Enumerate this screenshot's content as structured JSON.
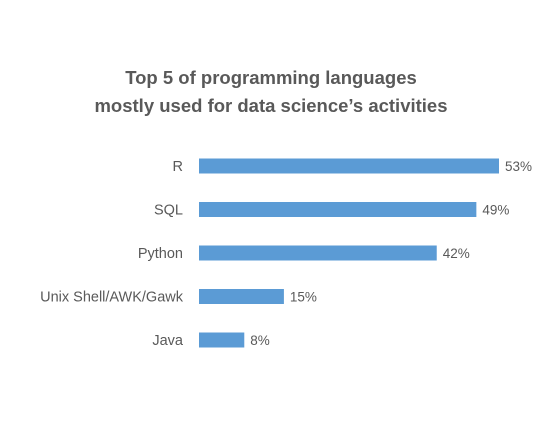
{
  "chart_data": {
    "type": "bar",
    "orientation": "horizontal",
    "title": [
      "Top 5 of programming languages",
      "mostly used for data science’s activities"
    ],
    "categories": [
      "R",
      "SQL",
      "Python",
      "Unix Shell/AWK/Gawk",
      "Java"
    ],
    "values": [
      53,
      49,
      42,
      15,
      8
    ],
    "value_labels": [
      "53%",
      "49%",
      "42%",
      "15%",
      "8%"
    ],
    "unit": "%",
    "xlim": [
      0,
      53
    ],
    "grid": false,
    "legend": "none",
    "bar_color": "#5B9BD5",
    "label_color": "#595959"
  }
}
